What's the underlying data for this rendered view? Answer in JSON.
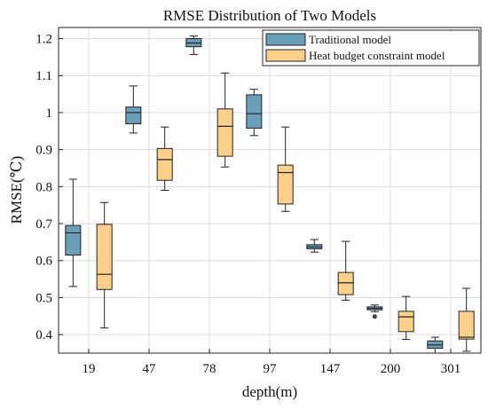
{
  "chart_data": {
    "type": "boxplot",
    "title": "RMSE Distribution of Two Models",
    "xlabel": "depth(m)",
    "ylabel": "RMSE(℃)",
    "categories": [
      "19",
      "47",
      "78",
      "97",
      "147",
      "200",
      "301"
    ],
    "ylim": [
      0.35,
      1.23
    ],
    "yticks": [
      "0.4",
      "0.5",
      "0.6",
      "0.7",
      "0.8",
      "0.9",
      "1",
      "1.1",
      "1.2"
    ],
    "legend_position": "top-right",
    "grid": true,
    "series": [
      {
        "name": "Traditional model",
        "color": "#6a9fba",
        "boxes": [
          {
            "min": 0.53,
            "q1": 0.615,
            "median": 0.675,
            "q3": 0.695,
            "max": 0.82,
            "outliers": []
          },
          {
            "min": 0.945,
            "q1": 0.97,
            "median": 1.0,
            "q3": 1.015,
            "max": 1.072,
            "outliers": []
          },
          {
            "min": 1.157,
            "q1": 1.178,
            "median": 1.188,
            "q3": 1.2,
            "max": 1.207,
            "outliers": []
          },
          {
            "min": 0.938,
            "q1": 0.958,
            "median": 0.997,
            "q3": 1.048,
            "max": 1.063,
            "outliers": []
          },
          {
            "min": 0.623,
            "q1": 0.632,
            "median": 0.637,
            "q3": 0.643,
            "max": 0.657,
            "outliers": []
          },
          {
            "min": 0.462,
            "q1": 0.467,
            "median": 0.471,
            "q3": 0.475,
            "max": 0.48,
            "outliers": [
              0.449
            ]
          },
          {
            "min": 0.35,
            "q1": 0.363,
            "median": 0.372,
            "q3": 0.383,
            "max": 0.393,
            "outliers": []
          }
        ]
      },
      {
        "name": "Heat budget constraint model",
        "color": "#fdd08a",
        "boxes": [
          {
            "min": 0.418,
            "q1": 0.522,
            "median": 0.563,
            "q3": 0.698,
            "max": 0.757,
            "outliers": []
          },
          {
            "min": 0.79,
            "q1": 0.817,
            "median": 0.873,
            "q3": 0.903,
            "max": 0.961,
            "outliers": []
          },
          {
            "min": 0.853,
            "q1": 0.882,
            "median": 0.963,
            "q3": 1.01,
            "max": 1.107,
            "outliers": []
          },
          {
            "min": 0.733,
            "q1": 0.753,
            "median": 0.838,
            "q3": 0.858,
            "max": 0.961,
            "outliers": []
          },
          {
            "min": 0.493,
            "q1": 0.508,
            "median": 0.54,
            "q3": 0.568,
            "max": 0.652,
            "outliers": []
          },
          {
            "min": 0.387,
            "q1": 0.408,
            "median": 0.448,
            "q3": 0.463,
            "max": 0.503,
            "outliers": []
          },
          {
            "min": 0.355,
            "q1": 0.388,
            "median": 0.393,
            "q3": 0.463,
            "max": 0.525,
            "outliers": []
          }
        ]
      }
    ]
  }
}
